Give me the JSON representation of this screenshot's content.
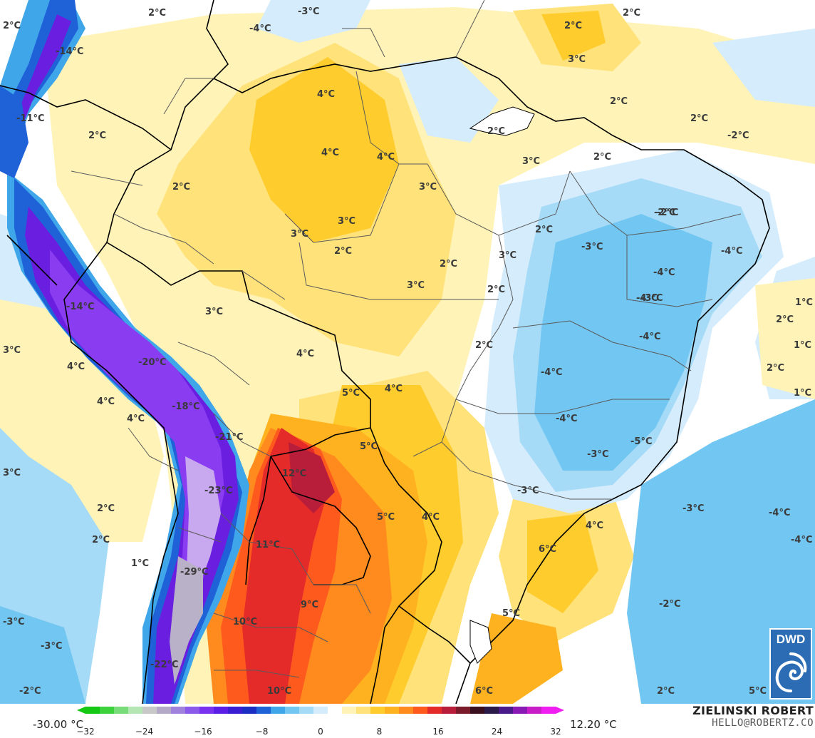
{
  "colors": {
    "white": "#ffffff",
    "pale_yellow": "#fff3b8",
    "yellow": "#ffe27a",
    "gold": "#ffcc2e",
    "amber": "#ffb21f",
    "orange": "#ff8a1e",
    "red_orange": "#ff5a1e",
    "red": "#e52a2a",
    "dark_red": "#b81e3a",
    "pale_blue": "#d4ecfb",
    "light_blue": "#a6dbf7",
    "sky_blue": "#72c6f2",
    "mid_blue": "#3fa6ea",
    "blue": "#1f62d8",
    "dark_blue": "#1a2ec4",
    "violet": "#6a1ee0",
    "purple": "#8a3cf0",
    "lilac": "#c8a8ee",
    "grey_lilac": "#b9b1c8",
    "border_national": "#000000",
    "border_state": "#5a5a5a"
  },
  "temperature_labels": [
    {
      "text": "2°C"
    },
    {
      "text": "2°C"
    },
    {
      "text": "-3°C"
    },
    {
      "text": "-4°C"
    },
    {
      "text": "2°C"
    },
    {
      "text": "2°C"
    },
    {
      "text": "-14°C"
    },
    {
      "text": "3°C"
    },
    {
      "text": "4°C"
    },
    {
      "text": "2°C"
    },
    {
      "text": "2°C"
    },
    {
      "text": "-2°C"
    },
    {
      "text": "-11°C"
    },
    {
      "text": "2°C"
    },
    {
      "text": "2°C"
    },
    {
      "text": "2°C"
    },
    {
      "text": "-2°C"
    },
    {
      "text": "4°C"
    },
    {
      "text": "4°C"
    },
    {
      "text": "3°C"
    },
    {
      "text": "2°C"
    },
    {
      "text": "3°C"
    },
    {
      "text": "2°C"
    },
    {
      "text": "-2°C"
    },
    {
      "text": "3°C"
    },
    {
      "text": "3°C"
    },
    {
      "text": "2°C"
    },
    {
      "text": "-3°C"
    },
    {
      "text": "-4°C"
    },
    {
      "text": "3°C"
    },
    {
      "text": "2°C"
    },
    {
      "text": "-4°C"
    },
    {
      "text": "-4°C"
    },
    {
      "text": "3°C"
    },
    {
      "text": "2°C"
    },
    {
      "text": "-3°C"
    },
    {
      "text": "1°C"
    },
    {
      "text": "2°C"
    },
    {
      "text": "-14°C"
    },
    {
      "text": "3°C"
    },
    {
      "text": "2°C"
    },
    {
      "text": "-4°C"
    },
    {
      "text": "1°C"
    },
    {
      "text": "3°C"
    },
    {
      "text": "4°C"
    },
    {
      "text": "-20°C"
    },
    {
      "text": "4°C"
    },
    {
      "text": "-4°C"
    },
    {
      "text": "2°C"
    },
    {
      "text": "4°C"
    },
    {
      "text": "5°C"
    },
    {
      "text": "1°C"
    },
    {
      "text": "-18°C"
    },
    {
      "text": "4°C"
    },
    {
      "text": "4°C"
    },
    {
      "text": "-4°C"
    },
    {
      "text": "-21°C"
    },
    {
      "text": "5°C"
    },
    {
      "text": "-5°C"
    },
    {
      "text": "-3°C"
    },
    {
      "text": "3°C"
    },
    {
      "text": "12°C"
    },
    {
      "text": "-3°C"
    },
    {
      "text": "-23°C"
    },
    {
      "text": "2°C"
    },
    {
      "text": "5°C"
    },
    {
      "text": "4°C"
    },
    {
      "text": "-3°C"
    },
    {
      "text": "-4°C"
    },
    {
      "text": "4°C"
    },
    {
      "text": "2°C"
    },
    {
      "text": "-4°C"
    },
    {
      "text": "11°C"
    },
    {
      "text": "6°C"
    },
    {
      "text": "1°C"
    },
    {
      "text": "-29°C"
    },
    {
      "text": "9°C"
    },
    {
      "text": "-2°C"
    },
    {
      "text": "5°C"
    },
    {
      "text": "-3°C"
    },
    {
      "text": "10°C"
    },
    {
      "text": "-3°C"
    },
    {
      "text": "-22°C"
    },
    {
      "text": "-2°C"
    },
    {
      "text": "10°C"
    },
    {
      "text": "6°C"
    },
    {
      "text": "2°C"
    },
    {
      "text": "5°C"
    }
  ],
  "legend": {
    "min_label": "-30.00 °C",
    "max_label": "12.20 °C",
    "ticks": [
      "−32",
      "−24",
      "−16",
      "−8",
      "0",
      "8",
      "16",
      "24",
      "32"
    ],
    "tick_values": [
      -32,
      -24,
      -16,
      -8,
      0,
      8,
      16,
      24,
      32
    ],
    "range": [
      -32,
      32
    ],
    "palette": [
      "#14c814",
      "#3cd23c",
      "#78dc78",
      "#b4e6b4",
      "#c8c8c8",
      "#b4aac8",
      "#a082dc",
      "#8c5aeb",
      "#7832f0",
      "#5a1ee6",
      "#3a1ed2",
      "#1a2ec4",
      "#1f62d8",
      "#3fa6ea",
      "#72c6f2",
      "#a6dbf7",
      "#d4ecfb",
      "#ffffff",
      "#fff3b8",
      "#ffe27a",
      "#ffcc2e",
      "#ffb21f",
      "#ff8a1e",
      "#ff5a1e",
      "#e52a2a",
      "#b81e3a",
      "#7a1a2a",
      "#3a0e1e",
      "#2a1a4a",
      "#4a1a8a",
      "#8a1ab4",
      "#c81ec8",
      "#f01ef0"
    ]
  },
  "branding": {
    "name": "ZIELINSKI ROBERT",
    "email": "HELLO@ROBERTZ.CO",
    "logo_text": "DWD"
  }
}
